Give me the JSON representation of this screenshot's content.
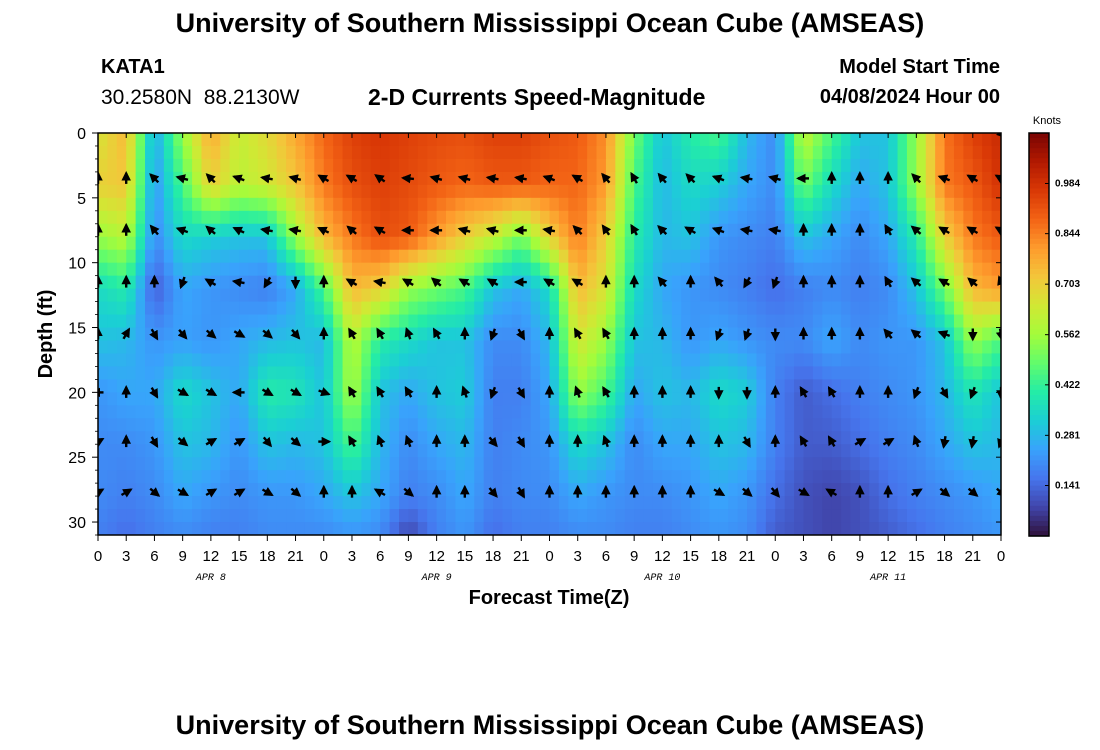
{
  "header": {
    "title": "University of Southern Mississippi Ocean Cube (AMSEAS)",
    "station": "KATA1",
    "coords": "30.2580N  88.2130W",
    "subtitle": "2-D Currents Speed-Magnitude",
    "start_label": "Model Start Time",
    "start_value": "04/08/2024 Hour 00"
  },
  "footer": {
    "title": "University of Southern Mississippi Ocean Cube (AMSEAS)"
  },
  "chart_data": {
    "type": "heatmap",
    "title": "2-D Currents Speed-Magnitude",
    "xlabel": "Forecast Time(Z)",
    "ylabel": "Depth (ft)",
    "x_hours_range": [
      0,
      96
    ],
    "ylim": [
      0,
      31
    ],
    "x_tick_labels": [
      "0",
      "3",
      "6",
      "9",
      "12",
      "15",
      "18",
      "21",
      "0",
      "3",
      "6",
      "9",
      "12",
      "15",
      "18",
      "21",
      "0",
      "3",
      "6",
      "9",
      "12",
      "15",
      "18",
      "21",
      "0",
      "3",
      "6",
      "9",
      "12",
      "15",
      "18",
      "21",
      "0"
    ],
    "day_labels": [
      "APR 8",
      "APR 9",
      "APR 10",
      "APR 11"
    ],
    "y_ticks": [
      0,
      5,
      10,
      15,
      20,
      25,
      30
    ],
    "colorbar": {
      "unit": "Knots",
      "ticks": [
        0.141,
        0.281,
        0.422,
        0.562,
        0.703,
        0.844,
        0.984
      ],
      "range": [
        0,
        1.125
      ],
      "colors": [
        "#30123b",
        "#4145ab",
        "#4675ed",
        "#39a2fc",
        "#1bcfd4",
        "#24eca6",
        "#61fc6c",
        "#a4fc3b",
        "#d1e834",
        "#f3c63a",
        "#fe9b2d",
        "#f36315",
        "#d93806",
        "#b11901",
        "#7a0403"
      ]
    },
    "speed_grid_depths_ft": [
      0,
      4,
      8,
      12,
      16,
      20,
      24,
      28,
      31
    ],
    "speed_grid_hours": [
      0,
      3,
      6,
      9,
      12,
      15,
      18,
      21,
      24,
      27,
      30,
      33,
      36,
      39,
      42,
      45,
      48,
      51,
      54,
      57,
      60,
      63,
      66,
      69,
      72,
      75,
      78,
      81,
      84,
      87,
      90,
      93,
      96
    ],
    "speed_grid": [
      [
        0.65,
        0.75,
        0.25,
        0.55,
        0.78,
        0.62,
        0.68,
        0.78,
        0.88,
        0.95,
        0.97,
        0.95,
        0.93,
        0.92,
        0.95,
        0.95,
        0.92,
        0.9,
        0.82,
        0.5,
        0.3,
        0.4,
        0.45,
        0.28,
        0.2,
        0.62,
        0.45,
        0.3,
        0.3,
        0.55,
        0.86,
        0.95,
        1.0
      ],
      [
        0.7,
        0.72,
        0.22,
        0.45,
        0.7,
        0.6,
        0.64,
        0.72,
        0.85,
        0.92,
        0.95,
        0.93,
        0.9,
        0.88,
        0.9,
        0.9,
        0.88,
        0.88,
        0.8,
        0.45,
        0.28,
        0.35,
        0.32,
        0.25,
        0.2,
        0.5,
        0.35,
        0.25,
        0.3,
        0.55,
        0.85,
        0.9,
        0.98
      ],
      [
        0.55,
        0.6,
        0.2,
        0.35,
        0.32,
        0.3,
        0.3,
        0.55,
        0.75,
        0.85,
        0.92,
        0.9,
        0.8,
        0.7,
        0.62,
        0.5,
        0.7,
        0.85,
        0.7,
        0.4,
        0.28,
        0.3,
        0.22,
        0.2,
        0.18,
        0.3,
        0.25,
        0.2,
        0.25,
        0.4,
        0.7,
        0.85,
        0.9
      ],
      [
        0.35,
        0.4,
        0.12,
        0.25,
        0.22,
        0.2,
        0.18,
        0.25,
        0.45,
        0.75,
        0.7,
        0.55,
        0.5,
        0.45,
        0.3,
        0.25,
        0.35,
        0.75,
        0.65,
        0.35,
        0.25,
        0.22,
        0.2,
        0.18,
        0.15,
        0.18,
        0.2,
        0.18,
        0.2,
        0.3,
        0.5,
        0.75,
        0.8
      ],
      [
        0.3,
        0.28,
        0.22,
        0.24,
        0.22,
        0.25,
        0.28,
        0.3,
        0.28,
        0.6,
        0.4,
        0.35,
        0.3,
        0.3,
        0.2,
        0.2,
        0.28,
        0.65,
        0.55,
        0.3,
        0.28,
        0.22,
        0.25,
        0.22,
        0.2,
        0.2,
        0.25,
        0.2,
        0.22,
        0.22,
        0.3,
        0.55,
        0.45
      ],
      [
        0.22,
        0.25,
        0.25,
        0.35,
        0.3,
        0.25,
        0.4,
        0.38,
        0.3,
        0.58,
        0.3,
        0.25,
        0.3,
        0.32,
        0.18,
        0.18,
        0.25,
        0.55,
        0.45,
        0.25,
        0.3,
        0.28,
        0.35,
        0.32,
        0.18,
        0.12,
        0.15,
        0.18,
        0.2,
        0.22,
        0.28,
        0.38,
        0.3
      ],
      [
        0.2,
        0.2,
        0.22,
        0.3,
        0.28,
        0.22,
        0.3,
        0.28,
        0.3,
        0.45,
        0.28,
        0.2,
        0.25,
        0.28,
        0.18,
        0.2,
        0.22,
        0.35,
        0.3,
        0.2,
        0.25,
        0.25,
        0.3,
        0.28,
        0.18,
        0.12,
        0.12,
        0.15,
        0.18,
        0.2,
        0.25,
        0.3,
        0.28
      ],
      [
        0.2,
        0.18,
        0.2,
        0.25,
        0.22,
        0.2,
        0.22,
        0.22,
        0.25,
        0.3,
        0.25,
        0.18,
        0.2,
        0.25,
        0.18,
        0.2,
        0.2,
        0.25,
        0.22,
        0.2,
        0.2,
        0.22,
        0.25,
        0.22,
        0.15,
        0.1,
        0.08,
        0.1,
        0.15,
        0.18,
        0.2,
        0.22,
        0.25
      ],
      [
        0.18,
        0.15,
        0.18,
        0.2,
        0.18,
        0.18,
        0.2,
        0.2,
        0.2,
        0.22,
        0.2,
        0.08,
        0.18,
        0.22,
        0.15,
        0.18,
        0.18,
        0.2,
        0.2,
        0.18,
        0.18,
        0.2,
        0.22,
        0.2,
        0.12,
        0.1,
        0.08,
        0.1,
        0.12,
        0.15,
        0.18,
        0.2,
        0.22
      ]
    ],
    "vector_depths_ft": [
      0,
      3.5,
      7.5,
      11.5,
      15.5,
      20,
      23.8,
      27.7
    ],
    "vector_hours": [
      0,
      3,
      6,
      9,
      12,
      15,
      18,
      21,
      24,
      27,
      30,
      33,
      36,
      39,
      42,
      45,
      48,
      51,
      54,
      57,
      60,
      63,
      66,
      69,
      72,
      75,
      78,
      81,
      84,
      87,
      90,
      93,
      96
    ],
    "vector_directions_deg": [
      [
        null,
        null,
        null,
        null,
        null,
        null,
        null,
        null,
        null,
        null,
        null,
        null,
        null,
        null,
        null,
        null,
        null,
        null,
        null,
        null,
        null,
        null,
        null,
        null,
        null,
        null,
        null,
        null,
        null,
        null,
        null,
        null,
        135
      ],
      [
        0,
        0,
        315,
        285,
        315,
        290,
        280,
        285,
        300,
        300,
        305,
        275,
        285,
        285,
        280,
        280,
        290,
        300,
        320,
        330,
        320,
        315,
        290,
        280,
        285,
        270,
        0,
        0,
        0,
        315,
        290,
        300,
        300
      ],
      [
        0,
        0,
        320,
        290,
        310,
        295,
        280,
        280,
        295,
        310,
        300,
        270,
        270,
        285,
        285,
        270,
        280,
        315,
        325,
        330,
        315,
        300,
        290,
        280,
        280,
        0,
        0,
        0,
        330,
        310,
        300,
        300,
        300
      ],
      [
        0,
        0,
        0,
        200,
        300,
        280,
        210,
        180,
        0,
        300,
        280,
        300,
        310,
        300,
        300,
        270,
        300,
        300,
        0,
        0,
        320,
        0,
        320,
        210,
        200,
        0,
        0,
        0,
        330,
        310,
        300,
        310,
        340
      ],
      [
        0,
        30,
        150,
        140,
        130,
        120,
        130,
        140,
        0,
        330,
        330,
        340,
        330,
        0,
        200,
        150,
        0,
        330,
        330,
        0,
        0,
        0,
        200,
        200,
        180,
        0,
        0,
        0,
        320,
        310,
        290,
        180,
        170
      ],
      [
        270,
        0,
        150,
        120,
        120,
        270,
        120,
        120,
        110,
        330,
        330,
        330,
        0,
        340,
        200,
        150,
        0,
        340,
        330,
        0,
        0,
        0,
        180,
        180,
        0,
        330,
        330,
        0,
        0,
        200,
        150,
        200,
        180
      ],
      [
        60,
        0,
        150,
        130,
        60,
        60,
        140,
        130,
        90,
        330,
        340,
        340,
        0,
        0,
        140,
        150,
        0,
        0,
        340,
        0,
        0,
        0,
        0,
        150,
        0,
        330,
        330,
        60,
        60,
        340,
        190,
        190,
        200
      ],
      [
        60,
        60,
        130,
        120,
        60,
        60,
        120,
        130,
        0,
        0,
        300,
        130,
        0,
        0,
        140,
        150,
        0,
        0,
        0,
        0,
        0,
        0,
        120,
        130,
        140,
        120,
        300,
        0,
        0,
        60,
        130,
        130,
        130
      ]
    ]
  }
}
